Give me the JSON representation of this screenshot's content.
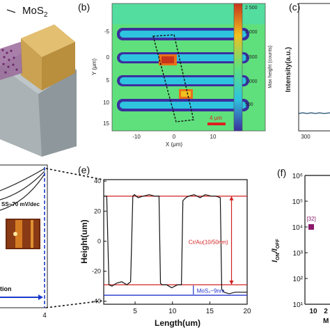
{
  "panel_a": {
    "material_label": "MoS",
    "material_subscript": "2"
  },
  "panel_b": {
    "letter": "(b)",
    "y_axis_label": "Y (μm)",
    "x_axis_label": "X (μm)",
    "y_ticks": [
      "-5",
      "0",
      "5",
      "10",
      "15"
    ],
    "x_ticks": [
      "-10",
      "0",
      "10"
    ],
    "colorbar_label": "Max height (counts)",
    "colorbar_ticks": [
      "2 500",
      "2 000",
      "1 500",
      "1 000",
      "500"
    ],
    "scalebar_label": "4 μm",
    "colors": {
      "low": "#3b2f9e",
      "mid": "#2ec4e0",
      "high": "#e8701a",
      "peak": "#c8341a"
    }
  },
  "panel_c": {
    "letter": "(c)",
    "y_axis_label": "Intensity(a.u.)",
    "x_ticks": [
      "300"
    ]
  },
  "panel_d": {
    "annotation": "SS~70 mV/dec",
    "bottom_text": "tion",
    "x_ticks": [
      "4"
    ]
  },
  "chart_data": [
    {
      "type": "line",
      "panel": "(e)",
      "xlabel": "Length(um)",
      "ylabel": "Height(um)",
      "xlim": [
        0.8,
        20
      ],
      "ylim": [
        -42,
        41
      ],
      "x_ticks": [
        5,
        10,
        15,
        20
      ],
      "y_ticks": [
        -40,
        -20,
        0,
        20,
        40
      ],
      "series": [
        {
          "x": [
            0.8,
            1.2,
            1.5,
            1.9,
            2.5,
            3.2,
            3.9,
            4.4,
            4.7,
            4.9,
            5.4,
            6.1,
            6.9,
            7.6,
            8.2,
            8.4,
            8.6,
            9.2,
            9.9,
            10.7,
            11.2,
            11.4,
            11.8,
            12.2,
            12.9,
            13.7,
            14.4,
            15.2,
            15.8,
            16.4,
            16.6,
            16.9,
            17.6,
            18.4,
            19.2,
            20
          ],
          "y": [
            30,
            30,
            -29,
            -30,
            -28,
            -27,
            -29,
            -27,
            30,
            31,
            29,
            30,
            31,
            30,
            30,
            -28,
            -29,
            -29,
            -31,
            -29,
            -29,
            27,
            29,
            30,
            31,
            29,
            31,
            30,
            30,
            29,
            -32,
            -34,
            -35,
            -34,
            -34,
            -34
          ]
        }
      ],
      "reference_lines": [
        {
          "y": 30,
          "color": "#d42020"
        },
        {
          "y": -29,
          "color": "#d42020"
        },
        {
          "y": -36,
          "color": "#2233cc"
        }
      ],
      "annotations": [
        "Cr/Au(10/50nm)",
        "MoS₂~9nm"
      ]
    },
    {
      "type": "scatter",
      "panel": "(f)",
      "ylabel_main": "I",
      "ylabel_sub1": "ON",
      "ylabel_slash": "/I",
      "ylabel_sub2": "OFF",
      "x_ticks": [
        "10",
        "2"
      ],
      "xlabel_partial": "M",
      "y_ticks": [
        "10⁶",
        "10⁵",
        "10⁴",
        "10³",
        "10²",
        "10¹"
      ],
      "points": [
        {
          "label": "[32]",
          "x": 11,
          "y": 10000,
          "color": "#8b1a6b"
        }
      ]
    }
  ]
}
